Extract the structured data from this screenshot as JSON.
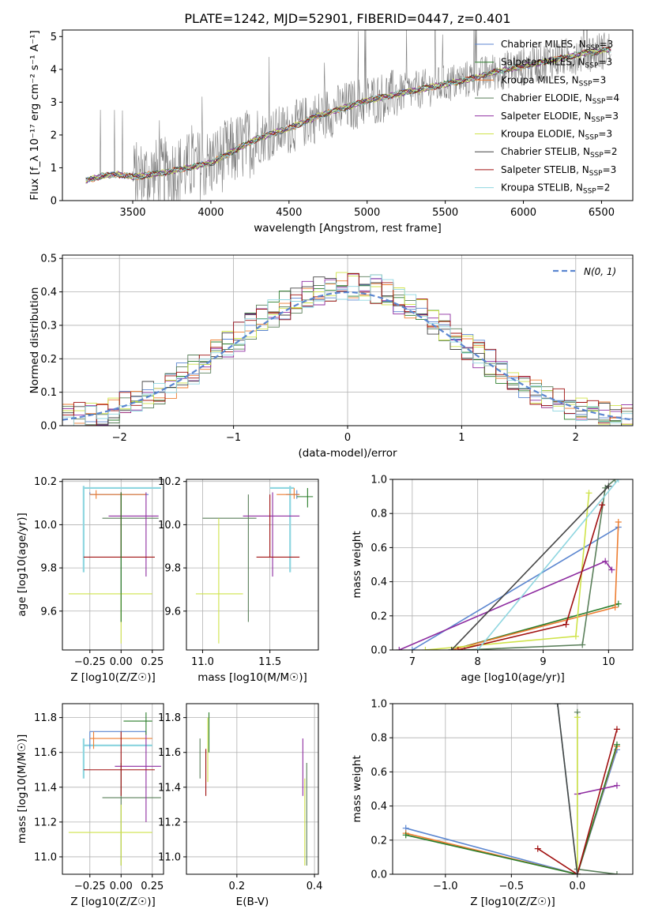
{
  "figure_title": "PLATE=1242, MJD=52901, FIBERID=0447, z=0.401",
  "colors": {
    "Chabrier MILES": "#5b86d0",
    "Salpeter MILES": "#2a7d2a",
    "Kroupa MILES": "#ed7d31",
    "Chabrier ELODIE": "#5a7f5a",
    "Salpeter ELODIE": "#8e2ca0",
    "Kroupa ELODIE": "#cfe34a",
    "Chabrier STELIB": "#444444",
    "Salpeter STELIB": "#a01010",
    "Kroupa STELIB": "#8fd6e0",
    "normal": "#5b86d0",
    "data": "#808080"
  },
  "chart_data": [
    {
      "id": "spectrum",
      "type": "line",
      "title": "PLATE=1242, MJD=52901, FIBERID=0447, z=0.401",
      "xlabel": "wavelength [Angstrom, rest frame]",
      "ylabel": "Flux [f_λ 10⁻¹⁷ erg cm⁻² s⁻¹ A⁻¹]",
      "xlim": [
        3050,
        6700
      ],
      "ylim": [
        0,
        5.2
      ],
      "xticks": [
        3500,
        4000,
        4500,
        5000,
        5500,
        6000,
        6500
      ],
      "yticks": [
        0,
        1,
        2,
        3,
        4,
        5
      ],
      "grid": false,
      "legend": "top-right",
      "legend_entries": [
        {
          "label": "Chabrier MILES, N",
          "sub": "SSP",
          "suffix": "=3",
          "model": "Chabrier MILES"
        },
        {
          "label": "Salpeter MILES, N",
          "sub": "SSP",
          "suffix": "=3",
          "model": "Salpeter MILES"
        },
        {
          "label": "Kroupa MILES, N",
          "sub": "SSP",
          "suffix": "=3",
          "model": "Kroupa MILES"
        },
        {
          "label": "Chabrier ELODIE, N",
          "sub": "SSP",
          "suffix": "=4",
          "model": "Chabrier ELODIE"
        },
        {
          "label": "Salpeter ELODIE, N",
          "sub": "SSP",
          "suffix": "=3",
          "model": "Salpeter ELODIE"
        },
        {
          "label": "Kroupa ELODIE, N",
          "sub": "SSP",
          "suffix": "=3",
          "model": "Kroupa ELODIE"
        },
        {
          "label": "Chabrier STELIB, N",
          "sub": "SSP",
          "suffix": "=2",
          "model": "Chabrier STELIB"
        },
        {
          "label": "Salpeter STELIB, N",
          "sub": "SSP",
          "suffix": "=3",
          "model": "Salpeter STELIB"
        },
        {
          "label": "Kroupa STELIB, N",
          "sub": "SSP",
          "suffix": "=2",
          "model": "Kroupa STELIB"
        }
      ],
      "model_curve": {
        "x": [
          3200,
          3300,
          3400,
          3500,
          3600,
          3700,
          3800,
          3900,
          4000,
          4100,
          4200,
          4300,
          4400,
          4500,
          4600,
          4700,
          4800,
          4900,
          5000,
          5100,
          5200,
          5300,
          5400,
          5500,
          5600,
          5700,
          5800,
          5900,
          6000,
          6100,
          6200,
          6300,
          6400,
          6550
        ],
        "y": [
          0.6,
          0.75,
          0.8,
          0.72,
          0.78,
          0.85,
          0.95,
          1.05,
          1.15,
          1.4,
          1.65,
          1.9,
          2.05,
          2.2,
          2.4,
          2.6,
          2.75,
          2.9,
          3.05,
          3.15,
          3.25,
          3.35,
          3.45,
          3.55,
          3.65,
          3.75,
          3.9,
          4.0,
          4.1,
          4.2,
          4.3,
          4.4,
          4.5,
          4.6
        ]
      }
    },
    {
      "id": "residuals",
      "type": "histogram",
      "xlabel": "(data-model)/error",
      "ylabel": "Normed distribution",
      "xlim": [
        -2.5,
        2.5
      ],
      "ylim": [
        0,
        0.51
      ],
      "xticks": [
        -2,
        -1,
        0,
        1,
        2
      ],
      "yticks": [
        0,
        0.1,
        0.2,
        0.3,
        0.4,
        0.5
      ],
      "grid": true,
      "legend": "top-right",
      "normal_label": "N(0, 1)",
      "bin_width": 0.1
    },
    {
      "id": "age_vs_z",
      "type": "errorbar",
      "xlabel": "Z [log10(Z/Z☉)]",
      "ylabel": "age [log10(age/yr)]",
      "xlim": [
        -0.47,
        0.34
      ],
      "ylim": [
        9.42,
        10.21
      ],
      "xticks": [
        -0.25,
        0.0,
        0.25
      ],
      "yticks": [
        9.6,
        9.8,
        10.0,
        10.2
      ],
      "grid": true,
      "points": [
        {
          "model": "Kroupa STELIB",
          "x": -0.3,
          "y": 10.17,
          "xl": -0.3,
          "xh": 0.32,
          "yl": 9.78,
          "yh": 10.18
        },
        {
          "model": "Chabrier MILES",
          "x": -0.25,
          "y": 10.14,
          "xl": -0.25,
          "xh": 0.22,
          "yl": 10.14,
          "yh": 10.15
        },
        {
          "model": "Kroupa MILES",
          "x": -0.2,
          "y": 10.14,
          "xl": -0.25,
          "xh": 0.2,
          "yl": 10.12,
          "yh": 10.16
        },
        {
          "model": "Chabrier ELODIE",
          "x": 0.0,
          "y": 10.03,
          "xl": -0.15,
          "xh": 0.3,
          "yl": 9.55,
          "yh": 10.14
        },
        {
          "model": "Salpeter ELODIE",
          "x": 0.2,
          "y": 10.04,
          "xl": -0.1,
          "xh": 0.3,
          "yl": 9.76,
          "yh": 10.15
        },
        {
          "model": "Salpeter STELIB",
          "x": 0.0,
          "y": 9.85,
          "xl": -0.3,
          "xh": 0.27,
          "yl": 9.85,
          "yh": 10.15
        },
        {
          "model": "Kroupa ELODIE",
          "x": 0.0,
          "y": 9.68,
          "xl": -0.42,
          "xh": 0.25,
          "yl": 9.45,
          "yh": 9.68
        },
        {
          "model": "Salpeter MILES",
          "x": 0.0,
          "y": 10.05,
          "xl": 0.0,
          "xh": 0.0,
          "yl": 9.55,
          "yh": 10.15
        }
      ]
    },
    {
      "id": "age_vs_mass",
      "type": "errorbar",
      "xlabel": "mass [log10(M/M☉)]",
      "ylabel": "",
      "xlim": [
        10.88,
        11.86
      ],
      "ylim": [
        9.42,
        10.21
      ],
      "xticks": [
        11.0,
        11.5
      ],
      "yticks": [
        9.6,
        9.8,
        10.0,
        10.2
      ],
      "grid": true,
      "points": [
        {
          "model": "Kroupa STELIB",
          "x": 11.65,
          "y": 10.17,
          "xl": 11.5,
          "xh": 11.68,
          "yl": 9.78,
          "yh": 10.18
        },
        {
          "model": "Chabrier MILES",
          "x": 11.7,
          "y": 10.14,
          "xl": 11.62,
          "xh": 11.72,
          "yl": 10.12,
          "yh": 10.16
        },
        {
          "model": "Kroupa MILES",
          "x": 11.68,
          "y": 10.14,
          "xl": 11.55,
          "xh": 11.72,
          "yl": 10.12,
          "yh": 10.17
        },
        {
          "model": "Chabrier ELODIE",
          "x": 11.34,
          "y": 10.03,
          "xl": 11.0,
          "xh": 11.4,
          "yl": 9.55,
          "yh": 10.14
        },
        {
          "model": "Salpeter ELODIE",
          "x": 11.52,
          "y": 10.04,
          "xl": 11.3,
          "xh": 11.72,
          "yl": 9.76,
          "yh": 10.15
        },
        {
          "model": "Salpeter STELIB",
          "x": 11.5,
          "y": 9.85,
          "xl": 11.4,
          "xh": 11.72,
          "yl": 9.85,
          "yh": 10.14
        },
        {
          "model": "Kroupa ELODIE",
          "x": 11.12,
          "y": 9.68,
          "xl": 10.95,
          "xh": 11.3,
          "yl": 9.45,
          "yh": 10.03
        },
        {
          "model": "Salpeter MILES",
          "x": 11.78,
          "y": 10.13,
          "xl": 11.7,
          "xh": 11.82,
          "yl": 10.08,
          "yh": 10.17
        }
      ]
    },
    {
      "id": "massweight_vs_age",
      "type": "line",
      "xlabel": "age [log10(age/yr)]",
      "ylabel": "mass weight",
      "xlim": [
        6.7,
        10.37
      ],
      "ylim": [
        0,
        1.0
      ],
      "xticks": [
        7,
        8,
        9,
        10
      ],
      "yticks": [
        0.0,
        0.2,
        0.4,
        0.6,
        0.8,
        1.0
      ],
      "grid": true,
      "series": [
        {
          "model": "Chabrier MILES",
          "x": [
            7.0,
            10.15
          ],
          "y": [
            0.0,
            0.72
          ]
        },
        {
          "model": "Salpeter MILES",
          "x": [
            7.6,
            10.15
          ],
          "y": [
            0.0,
            0.27
          ]
        },
        {
          "model": "Kroupa MILES",
          "x": [
            7.6,
            10.1,
            10.15
          ],
          "y": [
            0.0,
            0.25,
            0.75
          ]
        },
        {
          "model": "Chabrier ELODIE",
          "x": [
            7.8,
            9.6,
            9.95,
            10.1
          ],
          "y": [
            0.0,
            0.03,
            0.95,
            1.0
          ]
        },
        {
          "model": "Salpeter ELODIE",
          "x": [
            6.8,
            9.95,
            10.05
          ],
          "y": [
            0.0,
            0.52,
            0.47
          ]
        },
        {
          "model": "Kroupa ELODIE",
          "x": [
            7.2,
            9.5,
            9.7
          ],
          "y": [
            0.0,
            0.08,
            0.92
          ]
        },
        {
          "model": "Chabrier STELIB",
          "x": [
            7.6,
            10.0
          ],
          "y": [
            0.0,
            0.96
          ]
        },
        {
          "model": "Salpeter STELIB",
          "x": [
            7.7,
            9.35,
            9.9
          ],
          "y": [
            0.0,
            0.15,
            0.85
          ]
        },
        {
          "model": "Kroupa STELIB",
          "x": [
            8.0,
            10.15
          ],
          "y": [
            0.0,
            1.0
          ]
        }
      ]
    },
    {
      "id": "mass_vs_z",
      "type": "errorbar",
      "xlabel": "Z [log10(Z/Z☉)]",
      "ylabel": "mass [log10(M/M☉)]",
      "xlim": [
        -0.47,
        0.34
      ],
      "ylim": [
        10.9,
        11.88
      ],
      "xticks": [
        -0.25,
        0.0,
        0.25
      ],
      "yticks": [
        11.0,
        11.2,
        11.4,
        11.6,
        11.8
      ],
      "grid": true,
      "points": [
        {
          "model": "Kroupa STELIB",
          "x": -0.3,
          "y": 11.64,
          "xl": -0.3,
          "xh": 0.25,
          "yl": 11.45,
          "yh": 11.68
        },
        {
          "model": "Chabrier MILES",
          "x": -0.25,
          "y": 11.72,
          "xl": -0.25,
          "xh": 0.2,
          "yl": 11.62,
          "yh": 11.72
        },
        {
          "model": "Kroupa MILES",
          "x": -0.22,
          "y": 11.68,
          "xl": -0.25,
          "xh": 0.25,
          "yl": 11.62,
          "yh": 11.72
        },
        {
          "model": "Chabrier ELODIE",
          "x": 0.0,
          "y": 11.34,
          "xl": -0.15,
          "xh": 0.32,
          "yl": 10.95,
          "yh": 11.54
        },
        {
          "model": "Salpeter ELODIE",
          "x": 0.2,
          "y": 11.52,
          "xl": -0.05,
          "xh": 0.32,
          "yl": 11.2,
          "yh": 11.72
        },
        {
          "model": "Salpeter STELIB",
          "x": 0.0,
          "y": 11.5,
          "xl": -0.3,
          "xh": 0.27,
          "yl": 11.35,
          "yh": 11.72
        },
        {
          "model": "Kroupa ELODIE",
          "x": 0.0,
          "y": 11.14,
          "xl": -0.42,
          "xh": 0.25,
          "yl": 10.95,
          "yh": 11.3
        },
        {
          "model": "Salpeter MILES",
          "x": 0.2,
          "y": 11.78,
          "xl": 0.02,
          "xh": 0.25,
          "yl": 11.7,
          "yh": 11.83
        }
      ]
    },
    {
      "id": "mass_vs_ebv",
      "type": "errorbar",
      "xlabel": "E(B-V)",
      "ylabel": "",
      "xlim": [
        0.07,
        0.41
      ],
      "ylim": [
        10.9,
        11.88
      ],
      "xticks": [
        0.2,
        0.4
      ],
      "yticks": [
        11.0,
        11.2,
        11.4,
        11.6,
        11.8
      ],
      "grid": true,
      "points": [
        {
          "model": "Chabrier ELODIE",
          "x": 0.105,
          "y": 11.56,
          "yl": 11.45,
          "yh": 11.68
        },
        {
          "model": "Salpeter STELIB",
          "x": 0.12,
          "y": 11.5,
          "yl": 11.35,
          "yh": 11.62
        },
        {
          "model": "Kroupa ELODIE",
          "x": 0.125,
          "y": 11.6,
          "yl": 11.43,
          "yh": 11.8
        },
        {
          "model": "Salpeter MILES",
          "x": 0.128,
          "y": 11.7,
          "yl": 11.6,
          "yh": 11.83
        },
        {
          "model": "Salpeter ELODIE",
          "x": 0.37,
          "y": 11.52,
          "yl": 11.35,
          "yh": 11.68
        },
        {
          "model": "Kroupa ELODIE",
          "x": 0.375,
          "y": 11.2,
          "yl": 10.95,
          "yh": 11.45
        },
        {
          "model": "Chabrier ELODIE",
          "x": 0.38,
          "y": 11.3,
          "yl": 10.95,
          "yh": 11.54
        }
      ]
    },
    {
      "id": "massweight_vs_z",
      "type": "line",
      "xlabel": "Z [log10(Z/Z☉)]",
      "ylabel": "mass weight",
      "xlim": [
        -1.4,
        0.42
      ],
      "ylim": [
        0,
        1.0
      ],
      "xticks": [
        -1.0,
        -0.5,
        0.0
      ],
      "yticks": [
        0.0,
        0.2,
        0.4,
        0.6,
        0.8,
        1.0
      ],
      "grid": true,
      "series": [
        {
          "model": "Chabrier MILES",
          "x": [
            -1.3,
            0.0,
            0.3
          ],
          "y": [
            0.27,
            0.0,
            0.73
          ]
        },
        {
          "model": "Kroupa MILES",
          "x": [
            -1.3,
            0.0,
            0.3
          ],
          "y": [
            0.24,
            0.0,
            0.75
          ]
        },
        {
          "model": "Salpeter MILES",
          "x": [
            -1.3,
            0.0,
            0.3
          ],
          "y": [
            0.23,
            0.0,
            0.76
          ]
        },
        {
          "model": "Chabrier ELODIE",
          "x": [
            0.3,
            0.0,
            0.0
          ],
          "y": [
            0.0,
            0.03,
            0.95
          ]
        },
        {
          "model": "Salpeter ELODIE",
          "x": [
            0.0,
            0.3
          ],
          "y": [
            0.47,
            0.52
          ]
        },
        {
          "model": "Kroupa ELODIE",
          "x": [
            0.0,
            0.0
          ],
          "y": [
            0.0,
            0.92
          ]
        },
        {
          "model": "Salpeter STELIB",
          "x": [
            -0.3,
            0.0,
            0.3
          ],
          "y": [
            0.15,
            0.0,
            0.85
          ]
        },
        {
          "model": "Kroupa STELIB",
          "x": [
            -0.15,
            0.0
          ],
          "y": [
            1.0,
            0.0
          ]
        },
        {
          "model": "Chabrier STELIB",
          "x": [
            -0.15,
            0.0
          ],
          "y": [
            1.0,
            0.0
          ]
        }
      ]
    }
  ]
}
